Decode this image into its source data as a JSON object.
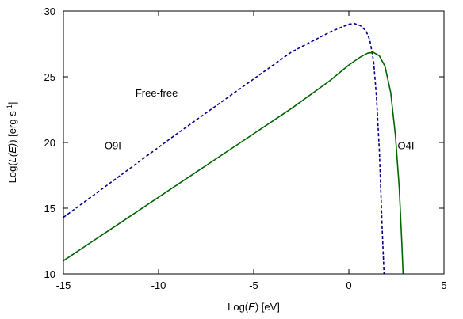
{
  "chart_data": {
    "type": "line",
    "title": "",
    "xlabel_prefix": "Log(",
    "xlabel_var": "E",
    "xlabel_suffix": ") [eV]",
    "ylabel_prefix": "Log(",
    "ylabel_var": "L(E)",
    "ylabel_suffix": ") [erg s",
    "ylabel_sup": "-1",
    "ylabel_end": "]",
    "xlim": [
      -15,
      5
    ],
    "ylim": [
      10,
      30
    ],
    "xticks": [
      -15,
      -10,
      -5,
      0,
      5
    ],
    "yticks": [
      10,
      15,
      20,
      25,
      30
    ],
    "grid": false,
    "legend": "none",
    "annotations": [
      {
        "text": "Free-free",
        "x": -10.1,
        "y": 23.8
      },
      {
        "text": "O9I",
        "x": -12.4,
        "y": 19.8
      },
      {
        "text": "O4I",
        "x": 3.0,
        "y": 19.8
      }
    ],
    "series": [
      {
        "label": "O9I",
        "color": "#00008b",
        "dash": "dashed",
        "x": [
          -15,
          -12,
          -9,
          -6,
          -3,
          -1,
          0,
          0.3,
          0.6,
          0.9,
          1.1,
          1.3,
          1.45,
          1.6,
          1.75,
          1.85
        ],
        "y": [
          14.3,
          17.5,
          20.7,
          23.8,
          26.9,
          28.4,
          29.0,
          29.05,
          28.9,
          28.5,
          27.8,
          26.2,
          23.5,
          19.5,
          13.5,
          10.0
        ]
      },
      {
        "label": "O4I",
        "color": "#006400",
        "dash": "solid",
        "x": [
          -15,
          -12,
          -9,
          -6,
          -3,
          -1,
          0,
          0.6,
          1.0,
          1.3,
          1.6,
          1.9,
          2.2,
          2.45,
          2.65,
          2.78,
          2.85
        ],
        "y": [
          11.0,
          13.9,
          16.8,
          19.7,
          22.6,
          24.7,
          25.9,
          26.5,
          26.8,
          26.85,
          26.6,
          25.8,
          23.8,
          20.5,
          16.5,
          12.5,
          10.0
        ]
      }
    ]
  }
}
